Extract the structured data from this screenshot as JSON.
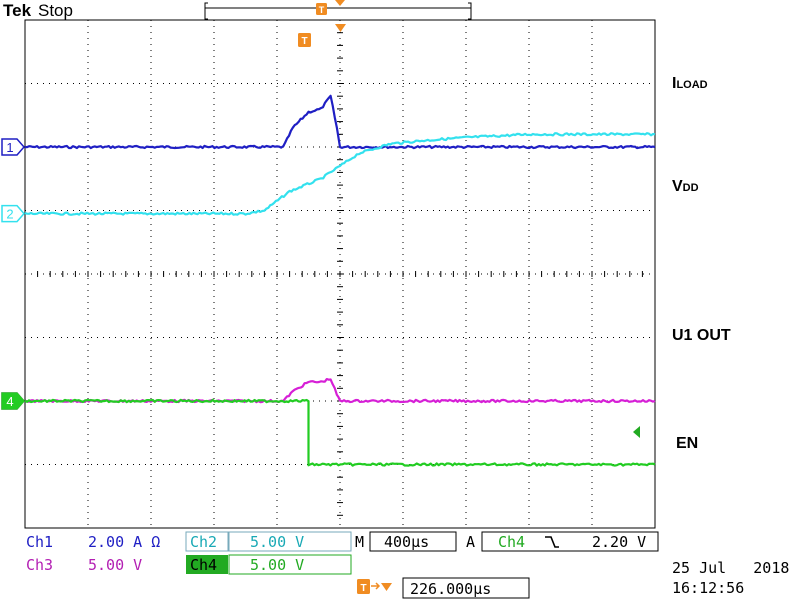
{
  "header": {
    "brand": "Tek",
    "state": "Stop"
  },
  "colors": {
    "ch1": "#1f1fc4",
    "ch2": "#33e1ee",
    "ch3": "#d61fd6",
    "ch4": "#22cc22",
    "trigger": "#f08c22",
    "grid": "#000000"
  },
  "icons": {
    "trigger_marker": "T-flag",
    "trigger_position": "down-triangle",
    "falling_edge": "falling-edge-glyph",
    "ch4_trigger_level": "left-arrow"
  },
  "labels": {
    "iload_main": "I",
    "iload_sub": "LOAD",
    "vdd_main": "V",
    "vdd_sub": "DD",
    "u1out": "U1 OUT",
    "en": "EN"
  },
  "readout": {
    "ch1_name": "Ch1",
    "ch1_scale": "2.00 A Ω",
    "ch2_name": "Ch2",
    "ch2_scale": "5.00 V",
    "ch3_name": "Ch3",
    "ch3_scale": "5.00 V",
    "ch4_name": "Ch4",
    "ch4_scale": "5.00 V",
    "m_label": "M",
    "timebase": "400µs",
    "trig_mode": "A",
    "trig_src": "Ch4",
    "trig_level": "2.20 V",
    "trig_delay": "226.000µs",
    "date": "25 Jul   2018",
    "time": "16:12:56"
  },
  "chart_data": {
    "type": "line",
    "grid": true,
    "divisions": {
      "x": 10,
      "y": 8
    },
    "xlabel": "",
    "ylabel": "",
    "xlim": [
      -5,
      5
    ],
    "ylim": [
      -4,
      4
    ],
    "trigger_x": 0,
    "series": [
      {
        "channel": "1",
        "x": [
          -5,
          -1.2,
          -0.9,
          -0.75,
          -0.5,
          -0.3,
          -0.15,
          -0.05,
          0.0,
          5
        ],
        "values": [
          2.0,
          2.0,
          2.0,
          2.3,
          2.55,
          2.6,
          2.8,
          2.3,
          2.0,
          2.0
        ]
      },
      {
        "channel": "2",
        "x": [
          -5,
          -1.5,
          -1.2,
          -0.8,
          -0.3,
          0.0,
          0.3,
          0.8,
          1.3,
          2.0,
          3.0,
          5
        ],
        "values": [
          0.95,
          0.95,
          1.0,
          1.3,
          1.5,
          1.7,
          1.9,
          2.05,
          2.1,
          2.15,
          2.2,
          2.2
        ]
      },
      {
        "channel": "3",
        "x": [
          -5,
          -1.2,
          -0.9,
          -0.75,
          -0.5,
          -0.3,
          -0.15,
          -0.05,
          0.0,
          5
        ],
        "values": [
          -2.0,
          -2.0,
          -2.0,
          -1.85,
          -1.7,
          -1.7,
          -1.65,
          -1.9,
          -2.0,
          -2.0
        ]
      },
      {
        "channel": "4",
        "x": [
          -5,
          -0.5,
          -0.5,
          5
        ],
        "values": [
          -2.0,
          -2.0,
          -3.0,
          -3.0
        ]
      }
    ]
  }
}
